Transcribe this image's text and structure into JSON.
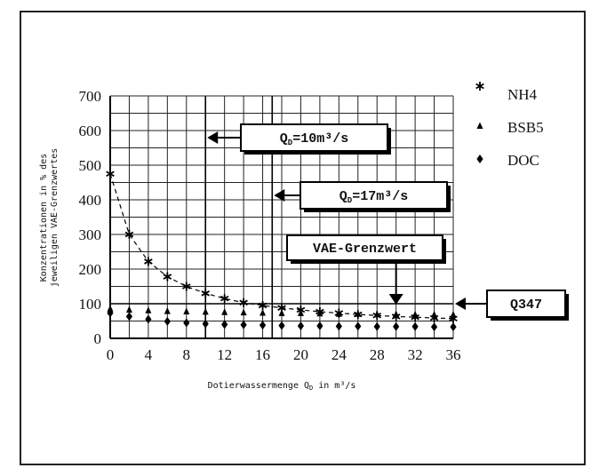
{
  "chart_data": {
    "type": "line",
    "xlabel": "Dotierwassermenge Q",
    "xlabel_sub": "D",
    "xlabel_unit": " in m³/s",
    "ylabel_line1": "Konzentrationen in % des",
    "ylabel_line2": "jeweiligen VAE-Grenzwertes",
    "xlim": [
      0,
      36
    ],
    "ylim": [
      0,
      700
    ],
    "x_ticks": [
      0,
      4,
      8,
      12,
      16,
      20,
      24,
      28,
      32,
      36
    ],
    "y_ticks": [
      0,
      100,
      200,
      300,
      400,
      500,
      600,
      700
    ],
    "grid": true,
    "legend_position": "right",
    "series": [
      {
        "name": "NH4",
        "marker": "asterisk",
        "x": [
          0,
          2,
          4,
          6,
          8,
          10,
          12,
          14,
          16,
          18,
          20,
          22,
          24,
          26,
          28,
          30,
          32,
          34,
          36
        ],
        "values": [
          475,
          300,
          222,
          178,
          150,
          130,
          115,
          103,
          95,
          88,
          82,
          77,
          73,
          69,
          66,
          63,
          61,
          59,
          57
        ]
      },
      {
        "name": "BSB5",
        "marker": "triangle",
        "x": [
          0,
          2,
          4,
          6,
          8,
          10,
          12,
          14,
          16,
          18,
          20,
          22,
          24,
          26,
          28,
          30,
          32,
          34,
          36
        ],
        "values": [
          85,
          82,
          80,
          78,
          77,
          76,
          75,
          74,
          73,
          72,
          72,
          71,
          70,
          70,
          69,
          69,
          68,
          68,
          68
        ]
      },
      {
        "name": "DOC",
        "marker": "diamond",
        "x": [
          0,
          2,
          4,
          6,
          8,
          10,
          12,
          14,
          16,
          18,
          20,
          22,
          24,
          26,
          28,
          30,
          32,
          34,
          36
        ],
        "values": [
          73,
          63,
          55,
          49,
          45,
          42,
          40,
          39,
          38,
          37,
          36,
          36,
          35,
          35,
          34,
          34,
          34,
          33,
          33
        ]
      }
    ],
    "reference_lines": {
      "vertical": [
        10,
        17
      ],
      "horizontal": [
        100
      ]
    },
    "annotations": [
      {
        "id": "qd10",
        "text": "Q",
        "sub": "D",
        "rest": "=10m³/s",
        "target_x": 10
      },
      {
        "id": "qd17",
        "text": "Q",
        "sub": "D",
        "rest": "=17m³/s",
        "target_x": 17
      },
      {
        "id": "vae",
        "text": "VAE-Grenzwert"
      },
      {
        "id": "q347",
        "text": "Q347",
        "target_y": 100
      }
    ]
  }
}
